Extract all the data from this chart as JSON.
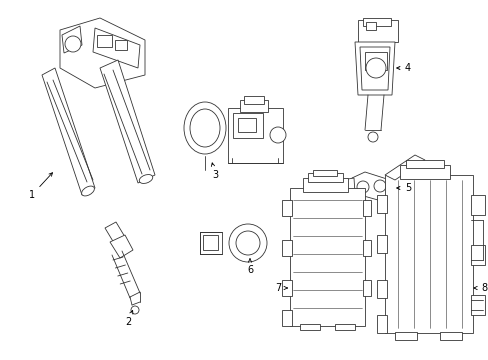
{
  "bg_color": "#ffffff",
  "line_color": "#333333",
  "fig_width": 4.89,
  "fig_height": 3.6,
  "dpi": 100,
  "label_fontsize": 7,
  "lw": 0.6
}
